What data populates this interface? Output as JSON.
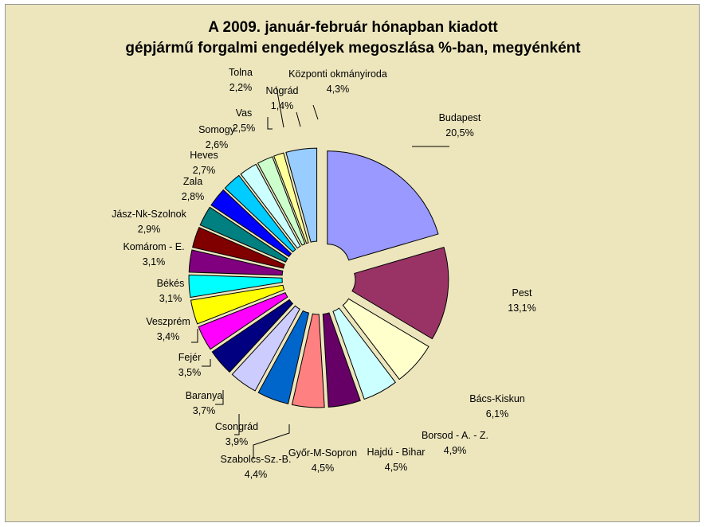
{
  "chart_data": {
    "type": "pie",
    "title": [
      "A  2009. január-február hónapban kiadott",
      "gépjármű forgalmi engedélyek megoszlása %-ban, megyénként"
    ],
    "exploded": true,
    "slices": [
      {
        "label": "Budapest",
        "value": 20.5,
        "display": "20,5%",
        "color": "#9999ff"
      },
      {
        "label": "Pest",
        "value": 13.1,
        "display": "13,1%",
        "color": "#993366"
      },
      {
        "label": "Bács-Kiskun",
        "value": 6.1,
        "display": "6,1%",
        "color": "#ffffcc"
      },
      {
        "label": "Borsod - A. - Z.",
        "value": 4.9,
        "display": "4,9%",
        "color": "#ccffff"
      },
      {
        "label": "Hajdú - Bihar",
        "value": 4.5,
        "display": "4,5%",
        "color": "#660066"
      },
      {
        "label": "Győr-M-Sopron",
        "value": 4.5,
        "display": "4,5%",
        "color": "#ff8080"
      },
      {
        "label": "Szabolcs-Sz.-B.",
        "value": 4.4,
        "display": "4,4%",
        "color": "#0066cc"
      },
      {
        "label": "Csongrád",
        "value": 3.9,
        "display": "3,9%",
        "color": "#ccccff"
      },
      {
        "label": "Baranya",
        "value": 3.7,
        "display": "3,7%",
        "color": "#000080"
      },
      {
        "label": "Fejér",
        "value": 3.5,
        "display": "3,5%",
        "color": "#ff00ff"
      },
      {
        "label": "Veszprém",
        "value": 3.4,
        "display": "3,4%",
        "color": "#ffff00"
      },
      {
        "label": "Békés",
        "value": 3.1,
        "display": "3,1%",
        "color": "#00ffff"
      },
      {
        "label": "Komárom - E.",
        "value": 3.1,
        "display": "3,1%",
        "color": "#800080"
      },
      {
        "label": "Jász-Nk-Szolnok",
        "value": 2.9,
        "display": "2,9%",
        "color": "#800000"
      },
      {
        "label": "Zala",
        "value": 2.8,
        "display": "2,8%",
        "color": "#008080"
      },
      {
        "label": "Heves",
        "value": 2.7,
        "display": "2,7%",
        "color": "#0000ff"
      },
      {
        "label": "Somogy",
        "value": 2.6,
        "display": "2,6%",
        "color": "#00ccff"
      },
      {
        "label": "Vas",
        "value": 2.5,
        "display": "2,5%",
        "color": "#ccffff"
      },
      {
        "label": "Tolna",
        "value": 2.2,
        "display": "2,2%",
        "color": "#ccffcc"
      },
      {
        "label": "Nógrád",
        "value": 1.4,
        "display": "1,4%",
        "color": "#ffff99"
      },
      {
        "label": "Központi okmányiroda",
        "value": 4.3,
        "display": "4,3%",
        "color": "#99ccff"
      }
    ]
  }
}
